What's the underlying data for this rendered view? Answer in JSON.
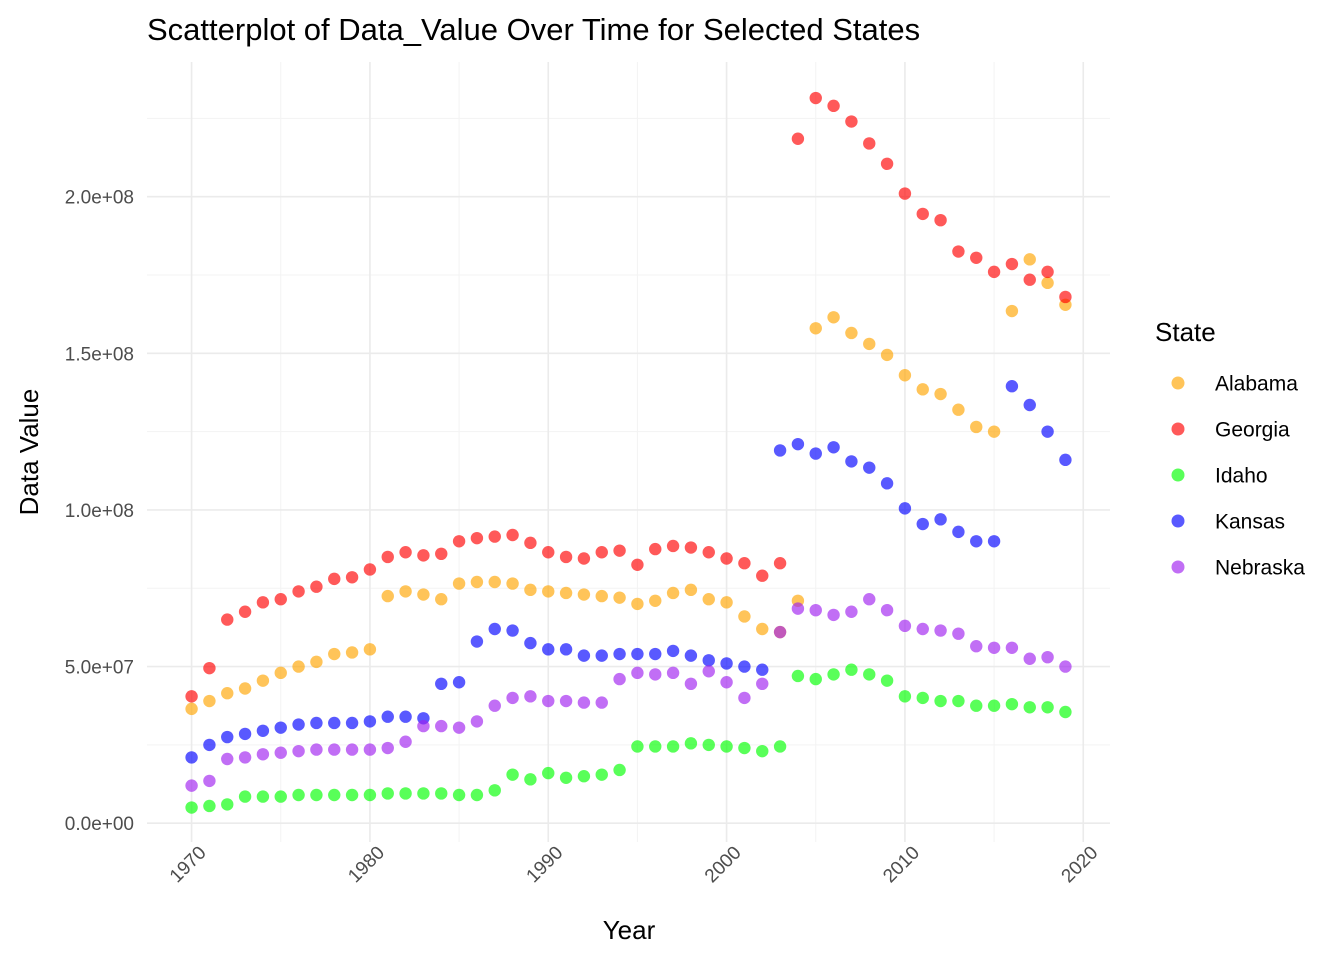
{
  "chart_data": {
    "type": "scatter",
    "title": "Scatterplot of Data_Value Over Time for Selected States",
    "xlabel": "Year",
    "ylabel": "Data Value",
    "xlim": [
      1967.5,
      2021.5
    ],
    "ylim": [
      -6000000,
      243000000
    ],
    "x_ticks": [
      1970,
      1980,
      1990,
      2000,
      2010,
      2020
    ],
    "x_tick_labels": [
      "1970",
      "1980",
      "1990",
      "2000",
      "2010",
      "2020"
    ],
    "y_ticks": [
      0,
      50000000,
      100000000,
      150000000,
      200000000
    ],
    "y_tick_labels": [
      "0.0e+00",
      "5.0e+07",
      "1.0e+08",
      "1.5e+08",
      "2.0e+08"
    ],
    "grid": true,
    "legend": {
      "title": "State",
      "placement": "right"
    },
    "series": [
      {
        "name": "Alabama",
        "color": "#FFA500",
        "points": [
          [
            1970,
            36500000
          ],
          [
            1971,
            39000000
          ],
          [
            1972,
            41500000
          ],
          [
            1973,
            43000000
          ],
          [
            1974,
            45500000
          ],
          [
            1975,
            48000000
          ],
          [
            1976,
            50000000
          ],
          [
            1977,
            51500000
          ],
          [
            1978,
            54000000
          ],
          [
            1979,
            54500000
          ],
          [
            1980,
            55500000
          ],
          [
            1981,
            72500000
          ],
          [
            1982,
            74000000
          ],
          [
            1983,
            73000000
          ],
          [
            1984,
            71500000
          ],
          [
            1985,
            76500000
          ],
          [
            1986,
            77000000
          ],
          [
            1987,
            77000000
          ],
          [
            1988,
            76500000
          ],
          [
            1989,
            74500000
          ],
          [
            1990,
            74000000
          ],
          [
            1991,
            73500000
          ],
          [
            1992,
            73000000
          ],
          [
            1993,
            72500000
          ],
          [
            1994,
            72000000
          ],
          [
            1995,
            70000000
          ],
          [
            1996,
            71000000
          ],
          [
            1997,
            73500000
          ],
          [
            1998,
            74500000
          ],
          [
            1999,
            71500000
          ],
          [
            2000,
            70500000
          ],
          [
            2001,
            66000000
          ],
          [
            2002,
            62000000
          ],
          [
            2003,
            61000000
          ],
          [
            2004,
            71000000
          ],
          [
            2005,
            158000000
          ],
          [
            2006,
            161500000
          ],
          [
            2007,
            156500000
          ],
          [
            2008,
            153000000
          ],
          [
            2009,
            149500000
          ],
          [
            2010,
            143000000
          ],
          [
            2011,
            138500000
          ],
          [
            2012,
            137000000
          ],
          [
            2013,
            132000000
          ],
          [
            2014,
            126500000
          ],
          [
            2015,
            125000000
          ],
          [
            2016,
            163500000
          ],
          [
            2017,
            180000000
          ],
          [
            2018,
            172500000
          ],
          [
            2019,
            165500000
          ]
        ]
      },
      {
        "name": "Georgia",
        "color": "#FF0000",
        "points": [
          [
            1970,
            40500000
          ],
          [
            1971,
            49500000
          ],
          [
            1972,
            65000000
          ],
          [
            1973,
            67500000
          ],
          [
            1974,
            70500000
          ],
          [
            1975,
            71500000
          ],
          [
            1976,
            74000000
          ],
          [
            1977,
            75500000
          ],
          [
            1978,
            78000000
          ],
          [
            1979,
            78500000
          ],
          [
            1980,
            81000000
          ],
          [
            1981,
            85000000
          ],
          [
            1982,
            86500000
          ],
          [
            1983,
            85500000
          ],
          [
            1984,
            86000000
          ],
          [
            1985,
            90000000
          ],
          [
            1986,
            91000000
          ],
          [
            1987,
            91500000
          ],
          [
            1988,
            92000000
          ],
          [
            1989,
            89500000
          ],
          [
            1990,
            86500000
          ],
          [
            1991,
            85000000
          ],
          [
            1992,
            84500000
          ],
          [
            1993,
            86500000
          ],
          [
            1994,
            87000000
          ],
          [
            1995,
            82500000
          ],
          [
            1996,
            87500000
          ],
          [
            1997,
            88500000
          ],
          [
            1998,
            88000000
          ],
          [
            1999,
            86500000
          ],
          [
            2000,
            84500000
          ],
          [
            2001,
            83000000
          ],
          [
            2002,
            79000000
          ],
          [
            2003,
            83000000
          ],
          [
            2004,
            218500000
          ],
          [
            2005,
            231500000
          ],
          [
            2006,
            229000000
          ],
          [
            2007,
            224000000
          ],
          [
            2008,
            217000000
          ],
          [
            2009,
            210500000
          ],
          [
            2010,
            201000000
          ],
          [
            2011,
            194500000
          ],
          [
            2012,
            192500000
          ],
          [
            2013,
            182500000
          ],
          [
            2014,
            180500000
          ],
          [
            2015,
            176000000
          ],
          [
            2016,
            178500000
          ],
          [
            2017,
            173500000
          ],
          [
            2018,
            176000000
          ],
          [
            2019,
            168000000
          ]
        ]
      },
      {
        "name": "Idaho",
        "color": "#00FF00",
        "points": [
          [
            1970,
            5000000
          ],
          [
            1971,
            5500000
          ],
          [
            1972,
            6000000
          ],
          [
            1973,
            8500000
          ],
          [
            1974,
            8500000
          ],
          [
            1975,
            8500000
          ],
          [
            1976,
            9000000
          ],
          [
            1977,
            9000000
          ],
          [
            1978,
            9000000
          ],
          [
            1979,
            9000000
          ],
          [
            1980,
            9000000
          ],
          [
            1981,
            9500000
          ],
          [
            1982,
            9500000
          ],
          [
            1983,
            9500000
          ],
          [
            1984,
            9500000
          ],
          [
            1985,
            9000000
          ],
          [
            1986,
            9000000
          ],
          [
            1987,
            10500000
          ],
          [
            1988,
            15500000
          ],
          [
            1989,
            14000000
          ],
          [
            1990,
            16000000
          ],
          [
            1991,
            14500000
          ],
          [
            1992,
            15000000
          ],
          [
            1993,
            15500000
          ],
          [
            1994,
            17000000
          ],
          [
            1995,
            24500000
          ],
          [
            1996,
            24500000
          ],
          [
            1997,
            24500000
          ],
          [
            1998,
            25500000
          ],
          [
            1999,
            25000000
          ],
          [
            2000,
            24500000
          ],
          [
            2001,
            24000000
          ],
          [
            2002,
            23000000
          ],
          [
            2003,
            24500000
          ],
          [
            2004,
            47000000
          ],
          [
            2005,
            46000000
          ],
          [
            2006,
            47500000
          ],
          [
            2007,
            49000000
          ],
          [
            2008,
            47500000
          ],
          [
            2009,
            45500000
          ],
          [
            2010,
            40500000
          ],
          [
            2011,
            40000000
          ],
          [
            2012,
            39000000
          ],
          [
            2013,
            39000000
          ],
          [
            2014,
            37500000
          ],
          [
            2015,
            37500000
          ],
          [
            2016,
            38000000
          ],
          [
            2017,
            37000000
          ],
          [
            2018,
            37000000
          ],
          [
            2019,
            35500000
          ]
        ]
      },
      {
        "name": "Kansas",
        "color": "#0000FF",
        "points": [
          [
            1970,
            21000000
          ],
          [
            1971,
            25000000
          ],
          [
            1972,
            27500000
          ],
          [
            1973,
            28500000
          ],
          [
            1974,
            29500000
          ],
          [
            1975,
            30500000
          ],
          [
            1976,
            31500000
          ],
          [
            1977,
            32000000
          ],
          [
            1978,
            32000000
          ],
          [
            1979,
            32000000
          ],
          [
            1980,
            32500000
          ],
          [
            1981,
            34000000
          ],
          [
            1982,
            34000000
          ],
          [
            1983,
            33500000
          ],
          [
            1984,
            44500000
          ],
          [
            1985,
            45000000
          ],
          [
            1986,
            58000000
          ],
          [
            1987,
            62000000
          ],
          [
            1988,
            61500000
          ],
          [
            1989,
            57500000
          ],
          [
            1990,
            55500000
          ],
          [
            1991,
            55500000
          ],
          [
            1992,
            53500000
          ],
          [
            1993,
            53500000
          ],
          [
            1994,
            54000000
          ],
          [
            1995,
            54000000
          ],
          [
            1996,
            54000000
          ],
          [
            1997,
            55000000
          ],
          [
            1998,
            53500000
          ],
          [
            1999,
            52000000
          ],
          [
            2000,
            51000000
          ],
          [
            2001,
            50000000
          ],
          [
            2002,
            49000000
          ],
          [
            2003,
            119000000
          ],
          [
            2004,
            121000000
          ],
          [
            2005,
            118000000
          ],
          [
            2006,
            120000000
          ],
          [
            2007,
            115500000
          ],
          [
            2008,
            113500000
          ],
          [
            2009,
            108500000
          ],
          [
            2010,
            100500000
          ],
          [
            2011,
            95500000
          ],
          [
            2012,
            97000000
          ],
          [
            2013,
            93000000
          ],
          [
            2014,
            90000000
          ],
          [
            2015,
            90000000
          ],
          [
            2016,
            139500000
          ],
          [
            2017,
            133500000
          ],
          [
            2018,
            125000000
          ],
          [
            2019,
            116000000
          ]
        ]
      },
      {
        "name": "Nebraska",
        "color": "#A020F0",
        "points": [
          [
            1970,
            12000000
          ],
          [
            1971,
            13500000
          ],
          [
            1972,
            20500000
          ],
          [
            1973,
            21000000
          ],
          [
            1974,
            22000000
          ],
          [
            1975,
            22500000
          ],
          [
            1976,
            23000000
          ],
          [
            1977,
            23500000
          ],
          [
            1978,
            23500000
          ],
          [
            1979,
            23500000
          ],
          [
            1980,
            23500000
          ],
          [
            1981,
            24000000
          ],
          [
            1982,
            26000000
          ],
          [
            1983,
            31000000
          ],
          [
            1984,
            31000000
          ],
          [
            1985,
            30500000
          ],
          [
            1986,
            32500000
          ],
          [
            1987,
            37500000
          ],
          [
            1988,
            40000000
          ],
          [
            1989,
            40500000
          ],
          [
            1990,
            39000000
          ],
          [
            1991,
            39000000
          ],
          [
            1992,
            38500000
          ],
          [
            1993,
            38500000
          ],
          [
            1994,
            46000000
          ],
          [
            1995,
            48000000
          ],
          [
            1996,
            47500000
          ],
          [
            1997,
            48000000
          ],
          [
            1998,
            44500000
          ],
          [
            1999,
            48500000
          ],
          [
            2000,
            45000000
          ],
          [
            2001,
            40000000
          ],
          [
            2002,
            44500000
          ],
          [
            2003,
            61000000
          ],
          [
            2004,
            68500000
          ],
          [
            2005,
            68000000
          ],
          [
            2006,
            66500000
          ],
          [
            2007,
            67500000
          ],
          [
            2008,
            71500000
          ],
          [
            2009,
            68000000
          ],
          [
            2010,
            63000000
          ],
          [
            2011,
            62000000
          ],
          [
            2012,
            61500000
          ],
          [
            2013,
            60500000
          ],
          [
            2014,
            56500000
          ],
          [
            2015,
            56000000
          ],
          [
            2016,
            56000000
          ],
          [
            2017,
            52500000
          ],
          [
            2018,
            53000000
          ],
          [
            2019,
            50000000
          ]
        ]
      }
    ]
  }
}
